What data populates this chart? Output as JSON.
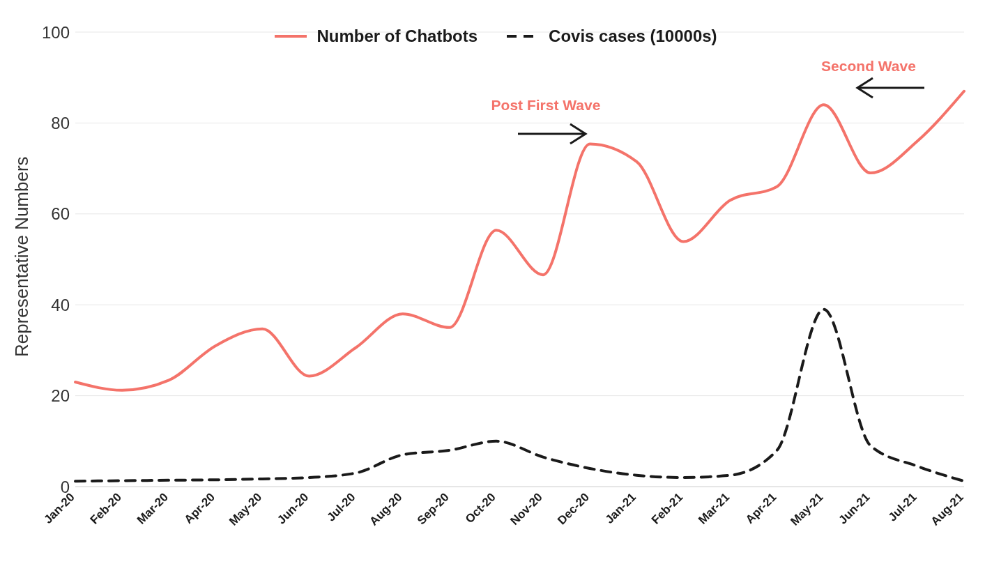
{
  "chart_data": {
    "type": "line",
    "ylabel": "Representative Numbers",
    "categories": [
      "Jan-20",
      "Feb-20",
      "Mar-20",
      "Apr-20",
      "May-20",
      "Jun-20",
      "Jul-20",
      "Aug-20",
      "Sep-20",
      "Oct-20",
      "Nov-20",
      "Dec-20",
      "Jan-21",
      "Feb-21",
      "Mar-21",
      "Apr-21",
      "May-21",
      "Jun-21",
      "Jul-21",
      "Aug-21"
    ],
    "series": [
      {
        "name": "Number of Chatbots",
        "color": "#f4736a",
        "line_style": "solid",
        "values": [
          23,
          21.2,
          23.4,
          31,
          34.7,
          24.3,
          30.6,
          38,
          35,
          56.4,
          46.6,
          75.4,
          71.5,
          53.9,
          63,
          66,
          84,
          69,
          76,
          87
        ]
      },
      {
        "name": "Covis cases (10000s)",
        "color": "#1a1a1a",
        "line_style": "dashed",
        "values": [
          1.2,
          1.3,
          1.4,
          1.5,
          1.7,
          2,
          3,
          7,
          8,
          10,
          6.5,
          4,
          2.5,
          2,
          2.5,
          8,
          39,
          9,
          4.5,
          1.2
        ]
      }
    ],
    "ylim": [
      0,
      100
    ],
    "yticks": [
      0,
      20,
      40,
      60,
      80,
      100
    ],
    "grid": "y",
    "legend": "top",
    "marker": "none",
    "annotations": [
      "Post First Wave",
      "Second Wave"
    ]
  }
}
